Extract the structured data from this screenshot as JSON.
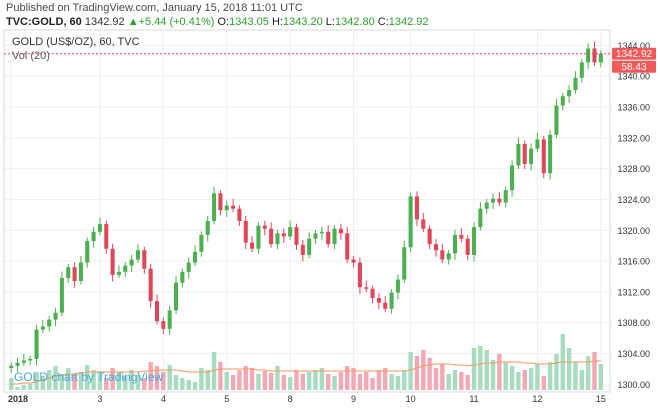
{
  "published": "Published on TradingView.com, January 15, 2018 11:01 UTC",
  "header": {
    "symbol": "TVC:GOLD, 60",
    "last": "1342.92",
    "change": "+5.44 (+0.41%)",
    "o_label": "O:",
    "o": "1343.05",
    "h_label": "H:",
    "h": "1343.20",
    "l_label": "L:",
    "l": "1342.80",
    "c_label": "C:",
    "c": "1342.92"
  },
  "legend": {
    "title": "GOLD (US$/OZ), 60, TVC",
    "vol": "Vol (20)"
  },
  "watermark": "GOLD chart by TradingView",
  "price_badge": "1342.92",
  "vol_badge": "58.43",
  "colors": {
    "up": "#4caf50",
    "down": "#e0465a",
    "vol_up": "#a8dcc0",
    "vol_down": "#f2a9b5",
    "ma": "#f59a5a",
    "price_line": "#e0465a",
    "badge": "#f05a5a"
  },
  "chart_data": {
    "type": "candlestick",
    "title": "GOLD (US$/OZ), 60, TVC",
    "ylim": [
      1299,
      1346
    ],
    "y_ticks": [
      "1300.00",
      "1304.00",
      "1308.00",
      "1312.00",
      "1316.00",
      "1320.00",
      "1324.00",
      "1328.00",
      "1332.00",
      "1336.00",
      "1340.00",
      "1344.00"
    ],
    "x_ticks": [
      {
        "label": "2018",
        "i": 0
      },
      {
        "label": "3",
        "i": 14
      },
      {
        "label": "4",
        "i": 24
      },
      {
        "label": "5",
        "i": 34
      },
      {
        "label": "8",
        "i": 44
      },
      {
        "label": "9",
        "i": 54
      },
      {
        "label": "10",
        "i": 63
      },
      {
        "label": "11",
        "i": 73
      },
      {
        "label": "12",
        "i": 83
      },
      {
        "label": "15",
        "i": 93
      }
    ],
    "close_series": [
      1302.4,
      1302.8,
      1303.1,
      1303.3,
      1307.1,
      1307.5,
      1308.4,
      1309.3,
      1313.8,
      1315.2,
      1313.4,
      1315.8,
      1318.6,
      1319.8,
      1320.8,
      1317.6,
      1314.2,
      1314.6,
      1315.4,
      1316.2,
      1317.4,
      1315.0,
      1310.8,
      1308.2,
      1307.2,
      1309.6,
      1313.2,
      1314.6,
      1315.8,
      1317.2,
      1319.4,
      1321.2,
      1324.8,
      1322.6,
      1323.2,
      1322.8,
      1321.2,
      1318.4,
      1317.6,
      1320.6,
      1320.2,
      1318.2,
      1319.6,
      1319.2,
      1320.4,
      1318.1,
      1316.8,
      1318.9,
      1319.6,
      1319.8,
      1318.2,
      1320.2,
      1319.6,
      1316.2,
      1315.8,
      1312.6,
      1312.4,
      1311.2,
      1310.6,
      1309.8,
      1311.9,
      1313.6,
      1317.8,
      1324.4,
      1321.4,
      1320.2,
      1318.2,
      1317.4,
      1316.2,
      1317.0,
      1319.4,
      1318.9,
      1316.8,
      1320.4,
      1322.8,
      1323.6,
      1324.1,
      1323.6,
      1325.2,
      1328.4,
      1331.2,
      1328.6,
      1330.6,
      1331.8,
      1327.4,
      1332.4,
      1336.2,
      1337.4,
      1338.2,
      1339.8,
      1341.8,
      1343.6,
      1341.8,
      1342.92
    ],
    "volume_series": [
      12,
      3,
      5,
      6,
      18,
      14,
      20,
      24,
      16,
      22,
      15,
      18,
      25,
      20,
      16,
      12,
      22,
      18,
      14,
      20,
      15,
      12,
      28,
      24,
      18,
      25,
      15,
      12,
      10,
      8,
      22,
      20,
      38,
      28,
      18,
      15,
      20,
      24,
      22,
      16,
      19,
      17,
      24,
      15,
      13,
      20,
      16,
      18,
      20,
      22,
      16,
      14,
      18,
      24,
      22,
      16,
      18,
      12,
      20,
      22,
      16,
      14,
      20,
      38,
      34,
      40,
      32,
      22,
      26,
      16,
      20,
      18,
      15,
      42,
      44,
      40,
      30,
      36,
      28,
      24,
      18,
      20,
      22,
      26,
      14,
      28,
      36,
      56,
      42,
      28,
      20,
      34,
      38,
      26
    ],
    "ma_series": [
      6,
      6,
      7,
      7,
      8,
      10,
      12,
      14,
      15,
      16,
      16,
      17,
      18,
      18,
      18,
      18,
      18,
      18,
      18,
      18,
      18,
      19,
      19,
      20,
      20,
      20,
      20,
      19,
      18,
      18,
      18,
      18,
      20,
      21,
      21,
      21,
      21,
      21,
      21,
      20,
      20,
      19,
      19,
      19,
      19,
      19,
      19,
      19,
      19,
      19,
      19,
      19,
      19,
      19,
      19,
      19,
      19,
      19,
      19,
      19,
      19,
      19,
      19,
      20,
      22,
      24,
      25,
      26,
      26,
      26,
      25,
      25,
      24,
      25,
      26,
      27,
      27,
      28,
      28,
      28,
      28,
      27,
      27,
      26,
      26,
      26,
      27,
      28,
      28,
      28,
      28,
      28,
      29,
      29
    ],
    "ylabel": "",
    "xlabel": ""
  }
}
